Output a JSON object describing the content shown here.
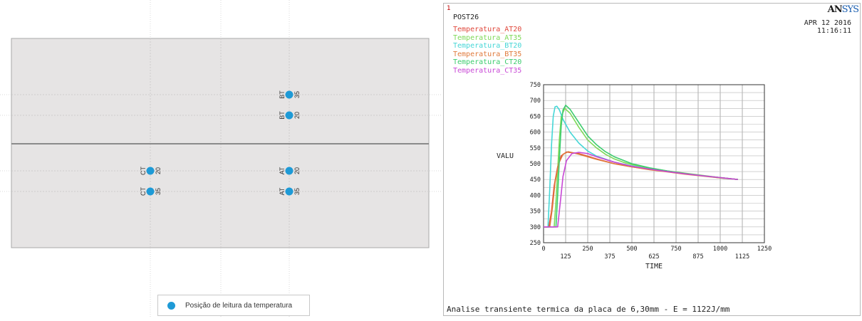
{
  "left_panel": {
    "legend_label": "Posição de leitura da temperatura",
    "points": [
      {
        "letters": "BT",
        "number": "35"
      },
      {
        "letters": "BT",
        "number": "20"
      },
      {
        "letters": "CT",
        "number": "20"
      },
      {
        "letters": "CT",
        "number": "35"
      },
      {
        "letters": "AT",
        "number": "20"
      },
      {
        "letters": "AT",
        "number": "35"
      }
    ],
    "colors": {
      "plate": "#e6e4e4",
      "dot": "#1e9ad6",
      "seam": "#8a8a8a"
    }
  },
  "right_panel": {
    "frame_number": "1",
    "post_label": "POST26",
    "logo": {
      "prefix": "AN",
      "suffix": "SYS"
    },
    "date": "APR 12 2016",
    "time": "11:16:11",
    "caption": "Analise transiente termica da placa de 6,30mm - E = 1122J/mm"
  },
  "chart_data": {
    "type": "line",
    "ylabel": "VALU",
    "xlabel": "TIME",
    "xlim": [
      0,
      1250
    ],
    "ylim": [
      250,
      750
    ],
    "grid": true,
    "x_ticks_upper": [
      "0",
      "250",
      "500",
      "750",
      "1000",
      "1250"
    ],
    "x_ticks_lower": [
      "125",
      "375",
      "625",
      "875",
      "1125"
    ],
    "y_ticks": [
      "250",
      "300",
      "350",
      "400",
      "450",
      "500",
      "550",
      "600",
      "650",
      "700",
      "750"
    ],
    "legend_position": "top-left",
    "series": [
      {
        "name": "Temperatura_AT20",
        "color": "#e0483c",
        "x": [
          0,
          30,
          45,
          60,
          80,
          100,
          130,
          200,
          300,
          400,
          500,
          600,
          700,
          800,
          900,
          1000,
          1100
        ],
        "y": [
          300,
          300,
          350,
          430,
          490,
          525,
          537,
          532,
          515,
          500,
          490,
          482,
          475,
          468,
          462,
          456,
          450
        ]
      },
      {
        "name": "Temperatura_AT35",
        "color": "#7ed957",
        "x": [
          0,
          60,
          70,
          80,
          90,
          100,
          120,
          150,
          200,
          250,
          300,
          350,
          400,
          450,
          500,
          600,
          700,
          800,
          900,
          1000,
          1100
        ],
        "y": [
          300,
          300,
          380,
          480,
          580,
          650,
          675,
          660,
          615,
          575,
          550,
          530,
          515,
          505,
          497,
          486,
          477,
          470,
          463,
          456,
          450
        ]
      },
      {
        "name": "Temperatura_BT20",
        "color": "#45d6d6",
        "x": [
          0,
          25,
          35,
          45,
          55,
          65,
          75,
          90,
          110,
          150,
          200,
          250,
          300,
          400,
          500,
          600,
          700,
          800,
          900,
          1000,
          1100
        ],
        "y": [
          300,
          300,
          420,
          560,
          650,
          680,
          682,
          670,
          640,
          600,
          565,
          540,
          524,
          505,
          493,
          483,
          475,
          468,
          462,
          455,
          450
        ]
      },
      {
        "name": "Temperatura_BT35",
        "color": "#e07a3c",
        "x": [
          0,
          35,
          50,
          65,
          85,
          110,
          140,
          200,
          300,
          400,
          500,
          600,
          700,
          800,
          900,
          1000,
          1100
        ],
        "y": [
          300,
          300,
          360,
          440,
          500,
          530,
          538,
          530,
          514,
          500,
          490,
          481,
          474,
          467,
          461,
          455,
          450
        ]
      },
      {
        "name": "Temperatura_CT20",
        "color": "#3ccc6e",
        "x": [
          0,
          70,
          80,
          90,
          100,
          110,
          125,
          150,
          200,
          250,
          300,
          350,
          400,
          500,
          600,
          700,
          800,
          900,
          1000,
          1100
        ],
        "y": [
          300,
          300,
          400,
          520,
          620,
          670,
          685,
          672,
          630,
          588,
          560,
          538,
          522,
          500,
          487,
          477,
          469,
          462,
          456,
          450
        ]
      },
      {
        "name": "Temperatura_CT35",
        "color": "#c848d6",
        "x": [
          0,
          80,
          95,
          110,
          130,
          160,
          200,
          250,
          300,
          400,
          500,
          600,
          700,
          800,
          900,
          1000,
          1100
        ],
        "y": [
          300,
          300,
          380,
          460,
          510,
          532,
          536,
          532,
          522,
          505,
          492,
          483,
          475,
          468,
          462,
          456,
          450
        ]
      }
    ]
  }
}
